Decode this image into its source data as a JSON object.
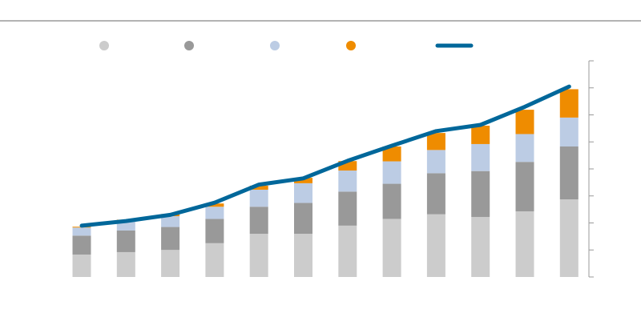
{
  "chart_data": {
    "type": "bar",
    "stacked": true,
    "title": "",
    "xlabel": "",
    "ylabel": "",
    "ylim": [
      0,
      8
    ],
    "y_ticks": [
      0,
      1,
      2,
      3,
      4,
      5,
      6,
      7,
      8
    ],
    "y_axis_side": "right",
    "tick_labels_visible": false,
    "grid": false,
    "legend": {
      "placement": "top",
      "labels_visible": false
    },
    "categories": [
      "",
      "",
      "",
      "",
      "",
      "",
      "",
      "",
      "",
      "",
      "",
      ""
    ],
    "series": [
      {
        "kind": "bar",
        "color": "#cccccc",
        "marker": "circle",
        "values": [
          0.83,
          0.92,
          1.0,
          1.25,
          1.6,
          1.6,
          1.9,
          2.15,
          2.32,
          2.22,
          2.43,
          2.87
        ]
      },
      {
        "kind": "bar",
        "color": "#999999",
        "marker": "circle",
        "values": [
          0.7,
          0.8,
          0.85,
          0.9,
          1.0,
          1.14,
          1.26,
          1.3,
          1.52,
          1.7,
          1.83,
          1.96
        ]
      },
      {
        "kind": "bar",
        "color": "#bccce4",
        "marker": "circle",
        "values": [
          0.3,
          0.35,
          0.4,
          0.45,
          0.63,
          0.73,
          0.78,
          0.83,
          0.86,
          1.0,
          1.03,
          1.07
        ]
      },
      {
        "kind": "bar",
        "color": "#ef8c00",
        "marker": "circle",
        "values": [
          0.03,
          0.05,
          0.08,
          0.12,
          0.15,
          0.2,
          0.35,
          0.55,
          0.63,
          0.68,
          0.9,
          1.05
        ]
      },
      {
        "kind": "line",
        "color": "#00679a",
        "marker": "line",
        "values": [
          1.9,
          2.07,
          2.3,
          2.75,
          3.42,
          3.65,
          4.3,
          4.86,
          5.4,
          5.63,
          6.3,
          7.05
        ]
      }
    ]
  },
  "colors": {
    "axis": "#999999",
    "rule": "#b3b3b3"
  }
}
